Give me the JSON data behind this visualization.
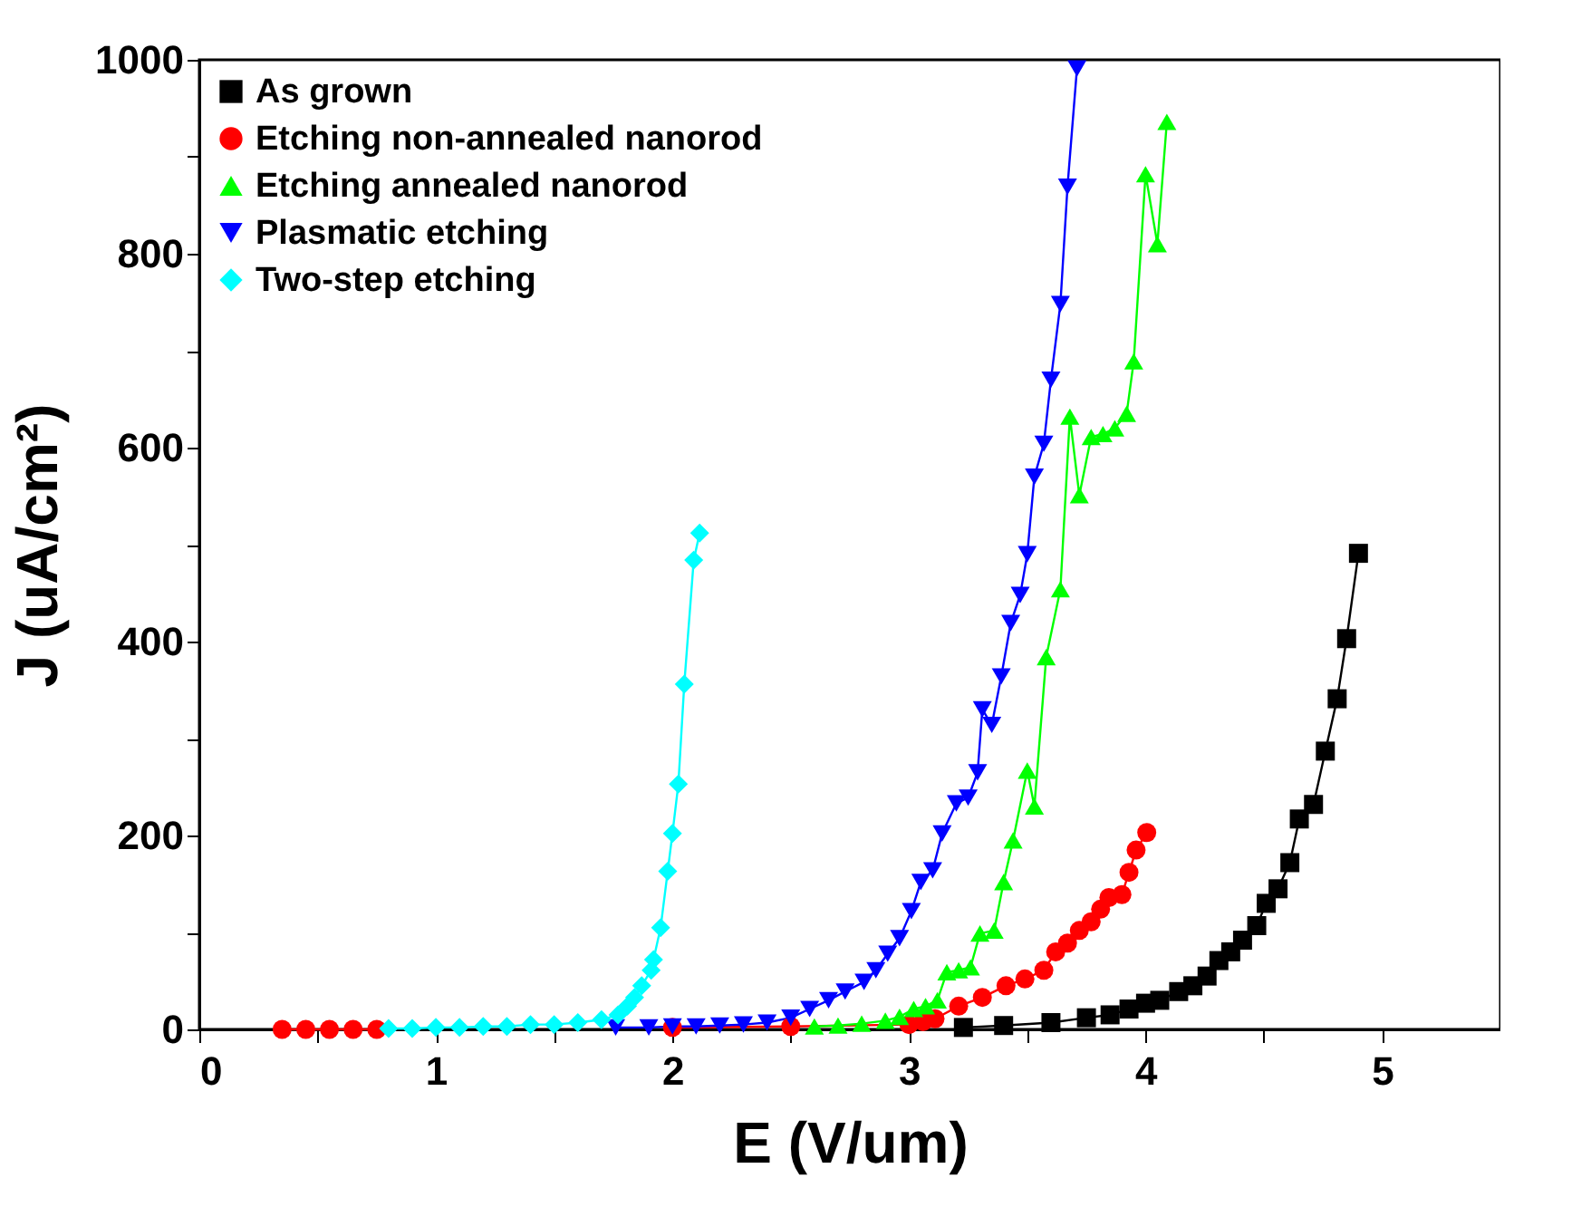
{
  "chart_data": {
    "type": "line",
    "xlabel": "E (V/um)",
    "ylabel": "J (uA/cm²)",
    "xlim": [
      0,
      5.5
    ],
    "ylim": [
      0,
      1000
    ],
    "xticks": [
      0,
      {
        "value": 0.5,
        "label": null
      },
      1,
      {
        "value": 1.5,
        "label": null
      },
      2,
      {
        "value": 2.5,
        "label": null
      },
      3,
      {
        "value": 3.5,
        "label": null
      },
      4,
      {
        "value": 4.5,
        "label": null
      },
      5
    ],
    "yticks": [
      0,
      {
        "value": 100,
        "label": null
      },
      200,
      {
        "value": 300,
        "label": null
      },
      400,
      {
        "value": 500,
        "label": null
      },
      600,
      {
        "value": 700,
        "label": null
      },
      800,
      {
        "value": 900,
        "label": null
      },
      1000
    ],
    "legend": "top left",
    "grid": false,
    "line_style": "solid",
    "series": [
      {
        "name": "As grown",
        "color": "#000000",
        "marker": "square",
        "x": [
          3.23,
          3.4,
          3.6,
          3.75,
          3.85,
          3.93,
          4.0,
          4.06,
          4.14,
          4.2,
          4.26,
          4.31,
          4.36,
          4.41,
          4.47,
          4.51,
          4.56,
          4.61,
          4.65,
          4.71,
          4.76,
          4.81,
          4.85,
          4.9
        ],
        "values": [
          2,
          4,
          7,
          12,
          15,
          21,
          27,
          30,
          39,
          45,
          55,
          71,
          80,
          92,
          107,
          130,
          145,
          172,
          217,
          232,
          287,
          341,
          403,
          491
        ]
      },
      {
        "name": "Etching non-annealed nanorod",
        "color": "#ff0000",
        "marker": "circle",
        "x": [
          0.35,
          0.45,
          0.55,
          0.65,
          0.75,
          1.0,
          1.5,
          2.0,
          2.5,
          3.0,
          3.06,
          3.11,
          3.21,
          3.31,
          3.41,
          3.49,
          3.57,
          3.62,
          3.67,
          3.72,
          3.77,
          3.81,
          3.845,
          3.9,
          3.93,
          3.96,
          4.005
        ],
        "values": [
          0,
          0,
          0,
          0,
          0,
          null,
          null,
          2,
          3,
          5,
          8,
          11,
          24,
          33,
          45,
          52,
          61,
          80,
          89,
          102,
          111,
          124,
          136,
          139,
          162,
          185,
          203
        ]
      },
      {
        "name": "Etching annealed nanorod",
        "color": "#00ff00",
        "marker": "triangle",
        "x": [
          2.6,
          2.7,
          2.8,
          2.9,
          2.96,
          3.02,
          3.07,
          3.12,
          3.16,
          3.21,
          3.26,
          3.3,
          3.36,
          3.4,
          3.44,
          3.5,
          3.53,
          3.58,
          3.64,
          3.68,
          3.72,
          3.77,
          3.82,
          3.87,
          3.92,
          3.95,
          4.0,
          4.05,
          4.09
        ],
        "values": [
          3,
          4,
          6,
          9,
          13,
          21,
          24,
          30,
          59,
          61,
          64,
          99,
          102,
          152,
          195,
          267,
          230,
          384,
          454,
          632,
          551,
          611,
          614,
          620,
          635,
          689,
          882,
          810,
          936
        ]
      },
      {
        "name": "Plasmatic etching",
        "color": "#0000ff",
        "marker": "triangle-down",
        "x": [
          1.76,
          1.9,
          2.0,
          2.1,
          2.2,
          2.3,
          2.4,
          2.5,
          2.58,
          2.66,
          2.73,
          2.81,
          2.86,
          2.91,
          2.96,
          3.01,
          3.05,
          3.1,
          3.14,
          3.2,
          3.25,
          3.29,
          3.31,
          3.35,
          3.39,
          3.43,
          3.47,
          3.5,
          3.53,
          3.57,
          3.6,
          3.64,
          3.67,
          3.71
        ],
        "values": [
          2,
          2,
          3,
          3,
          4,
          5,
          7,
          12,
          21,
          30,
          39,
          49,
          61,
          78,
          94,
          122,
          152,
          164,
          202,
          233,
          239,
          265,
          330,
          314,
          364,
          419,
          448,
          490,
          570,
          604,
          670,
          748,
          869,
          991
        ]
      },
      {
        "name": "Two-step etching",
        "color": "#00ffff",
        "marker": "diamond",
        "x": [
          0.8,
          0.9,
          1.0,
          1.1,
          1.2,
          1.3,
          1.4,
          1.5,
          1.6,
          1.7,
          1.77,
          1.81,
          1.84,
          1.87,
          1.91,
          1.92,
          1.95,
          1.98,
          2.0,
          2.025,
          2.05,
          2.09,
          2.115
        ],
        "values": [
          1,
          1,
          2,
          2,
          3,
          3,
          5,
          5,
          7,
          10,
          15,
          24,
          33,
          45,
          61,
          72,
          105,
          163,
          202,
          253,
          356,
          484,
          512
        ]
      }
    ]
  }
}
